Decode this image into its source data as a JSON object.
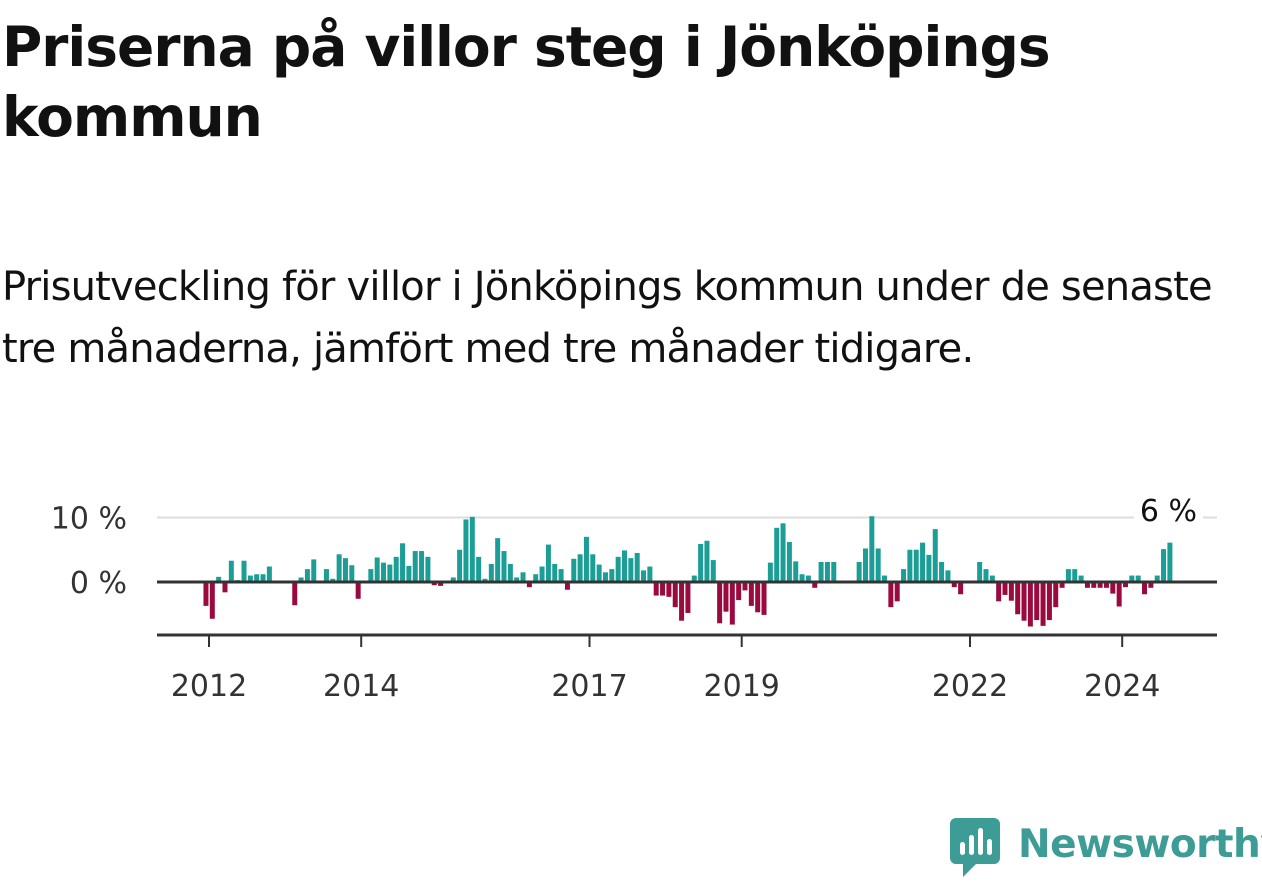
{
  "title": "Priserna på villor steg i Jönköpings kommun",
  "subtitle": "Prisutveckling för villor i Jönköpings kommun under de senaste tre månaderna, jämfört med tre månader tidigare.",
  "brand": {
    "name": "Newsworthy",
    "icon": "newsworthy-logo-icon",
    "color": "#3d9c96"
  },
  "colors": {
    "positive": "#1b9e96",
    "negative": "#9b0a3f",
    "grid": "#dddddd",
    "axis": "#333333"
  },
  "chart_data": {
    "type": "bar",
    "title": "",
    "xlabel": "",
    "ylabel": "",
    "ylim": [
      -8.5,
      10
    ],
    "yticks": [
      {
        "value": 0,
        "label": "0 %"
      },
      {
        "value": 10,
        "label": "10 %"
      }
    ],
    "xticks": [
      {
        "value": 2012,
        "label": "2012"
      },
      {
        "value": 2014,
        "label": "2014"
      },
      {
        "value": 2017,
        "label": "2017"
      },
      {
        "value": 2019,
        "label": "2019"
      },
      {
        "value": 2022,
        "label": "2022"
      },
      {
        "value": 2024,
        "label": "2024"
      }
    ],
    "start_year": 2011.96,
    "annotation": "6 %",
    "values": [
      -3.7,
      -5.7,
      0.8,
      -1.6,
      3.3,
      0.3,
      3.3,
      1.0,
      1.2,
      1.2,
      2.4,
      0,
      0,
      0,
      -3.6,
      0.7,
      2.0,
      3.5,
      0,
      2.0,
      0.5,
      4.3,
      3.7,
      2.6,
      -2.6,
      0,
      2.0,
      3.8,
      3.0,
      2.7,
      3.9,
      6.0,
      2.5,
      4.8,
      4.8,
      3.9,
      -0.5,
      -0.6,
      0,
      0.7,
      5.0,
      9.7,
      10.1,
      3.9,
      0.5,
      2.8,
      6.8,
      4.8,
      2.8,
      0.7,
      1.5,
      -0.8,
      1.2,
      2.4,
      5.8,
      2.8,
      2.0,
      -1.2,
      3.6,
      4.3,
      7.0,
      4.3,
      2.7,
      1.5,
      2.0,
      3.9,
      4.9,
      3.7,
      4.5,
      1.8,
      2.4,
      -2.1,
      -2.1,
      -2.3,
      -3.9,
      -6.0,
      -4.8,
      1.0,
      5.9,
      6.4,
      3.4,
      -6.4,
      -4.6,
      -6.6,
      -2.8,
      -1.3,
      -3.7,
      -4.7,
      -5.1,
      3.0,
      8.4,
      9.1,
      6.2,
      3.2,
      1.2,
      1.0,
      -0.9,
      3.1,
      3.1,
      3.1,
      0,
      0,
      0,
      3.1,
      5.2,
      10.2,
      5.2,
      1.0,
      -3.9,
      -3.0,
      2.0,
      5.0,
      5.0,
      6.1,
      4.2,
      8.2,
      3.1,
      1.8,
      -0.8,
      -1.9,
      0,
      0,
      3.1,
      2.0,
      1.0,
      -3.0,
      -2.0,
      -2.9,
      -5.0,
      -6.0,
      -6.9,
      -5.9,
      -6.8,
      -5.9,
      -3.9,
      -0.9,
      2.0,
      2.0,
      1.0,
      -0.9,
      -0.9,
      -0.9,
      -0.9,
      -1.8,
      -3.8,
      -0.8,
      1.0,
      1.0,
      -1.9,
      -0.9,
      1.0,
      5.1,
      6.1
    ]
  }
}
